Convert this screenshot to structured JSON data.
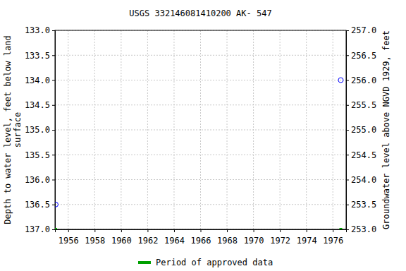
{
  "chart_data": {
    "type": "scatter",
    "title": "USGS 332146081410200 AK- 547",
    "y_label": [
      "Depth to water level, feet below land",
      "surface"
    ],
    "y2_label": "Groundwater level above NGVD 1929, feet",
    "x": [
      1955.05,
      1976.6
    ],
    "xlim": [
      1955.0,
      1977.0
    ],
    "xticks": [
      1956,
      1958,
      1960,
      1962,
      1964,
      1966,
      1968,
      1970,
      1972,
      1974,
      1976
    ],
    "ylim": [
      137.0,
      133.0
    ],
    "yticks": [
      {
        "value": 133.0,
        "label": "133.0"
      },
      {
        "value": 133.5,
        "label": "133.5"
      },
      {
        "value": 134.0,
        "label": "134.0"
      },
      {
        "value": 134.5,
        "label": "134.5"
      },
      {
        "value": 135.0,
        "label": "135.0"
      },
      {
        "value": 135.5,
        "label": "135.5"
      },
      {
        "value": 136.0,
        "label": "136.0"
      },
      {
        "value": 136.5,
        "label": "136.5"
      },
      {
        "value": 137.0,
        "label": "137.0"
      }
    ],
    "y2lim": [
      253.0,
      257.0
    ],
    "y2ticks": [
      {
        "value": 253.0,
        "label": "253.0"
      },
      {
        "value": 253.5,
        "label": "253.5"
      },
      {
        "value": 254.0,
        "label": "254.0"
      },
      {
        "value": 254.5,
        "label": "254.5"
      },
      {
        "value": 255.0,
        "label": "255.0"
      },
      {
        "value": 255.5,
        "label": "255.5"
      },
      {
        "value": 256.0,
        "label": "256.0"
      },
      {
        "value": 256.5,
        "label": "256.5"
      },
      {
        "value": 257.0,
        "label": "257.0"
      }
    ],
    "grid": true,
    "legend": "bottom",
    "series": [
      {
        "color": "#0000ff",
        "marker": "circle",
        "values": [
          136.5,
          134.0
        ]
      },
      {
        "name": "Period of approved data",
        "color": "#00a000",
        "marker": "square",
        "values": [
          137.0,
          137.0
        ]
      }
    ]
  }
}
